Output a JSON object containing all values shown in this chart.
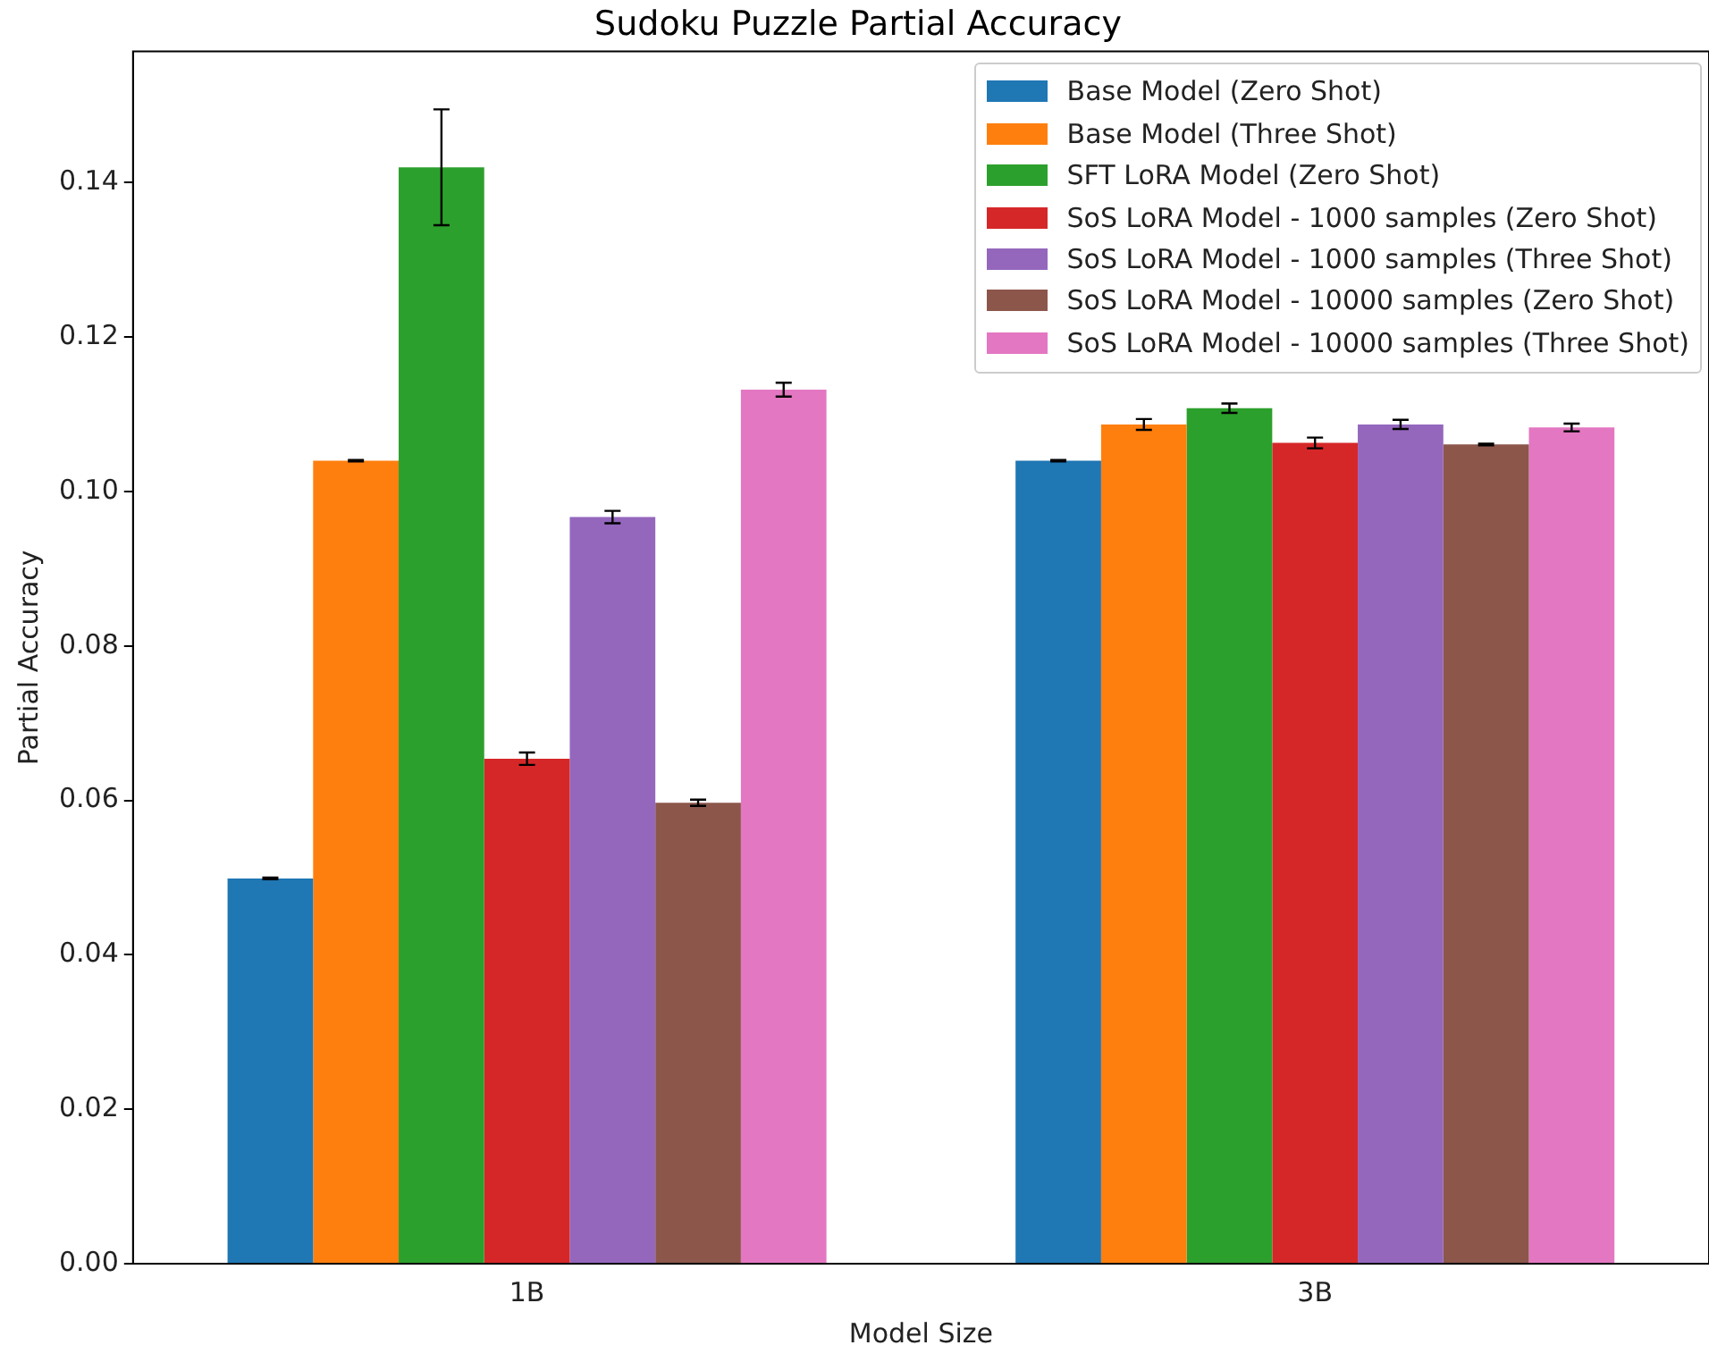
{
  "chart_data": {
    "type": "bar",
    "title": "Sudoku Puzzle Partial Accuracy",
    "xlabel": "Model Size",
    "ylabel": "Partial Accuracy",
    "categories": [
      "1B",
      "3B"
    ],
    "series": [
      {
        "name": "Base Model (Zero Shot)",
        "color": "#1f77b4",
        "values": [
          0.0499,
          0.104
        ],
        "errors": [
          0.0001,
          0.0001
        ]
      },
      {
        "name": "Base Model (Three Shot)",
        "color": "#ff7f0e",
        "values": [
          0.104,
          0.1087
        ],
        "errors": [
          0.0001,
          0.0007
        ]
      },
      {
        "name": "SFT LoRA Model (Zero Shot)",
        "color": "#2ca02c",
        "values": [
          0.142,
          0.1108
        ],
        "errors": [
          0.0075,
          0.0006
        ]
      },
      {
        "name": "SoS LoRA Model - 1000 samples (Zero Shot)",
        "color": "#d62728",
        "values": [
          0.0654,
          0.1063
        ],
        "errors": [
          0.0008,
          0.0007
        ]
      },
      {
        "name": "SoS LoRA Model - 1000 samples (Three Shot)",
        "color": "#9467bd",
        "values": [
          0.0967,
          0.1087
        ],
        "errors": [
          0.0008,
          0.0006
        ]
      },
      {
        "name": "SoS LoRA Model - 10000 samples (Zero Shot)",
        "color": "#8c564b",
        "values": [
          0.0597,
          0.1061
        ],
        "errors": [
          0.0004,
          0.0001
        ]
      },
      {
        "name": "SoS LoRA Model - 10000 samples (Three Shot)",
        "color": "#e377c2",
        "values": [
          0.1132,
          0.1083
        ],
        "errors": [
          0.0009,
          0.0005
        ]
      }
    ],
    "ylim": [
      0,
      0.157
    ],
    "yticks": [
      {
        "value": 0,
        "label": "0.00"
      },
      {
        "value": 0.02,
        "label": "0.02"
      },
      {
        "value": 0.04,
        "label": "0.04"
      },
      {
        "value": 0.06,
        "label": "0.06"
      },
      {
        "value": 0.08,
        "label": "0.08"
      },
      {
        "value": 0.1,
        "label": "0.10"
      },
      {
        "value": 0.12,
        "label": "0.12"
      },
      {
        "value": 0.14,
        "label": "0.14"
      }
    ],
    "grid": false,
    "legend": "top right"
  }
}
